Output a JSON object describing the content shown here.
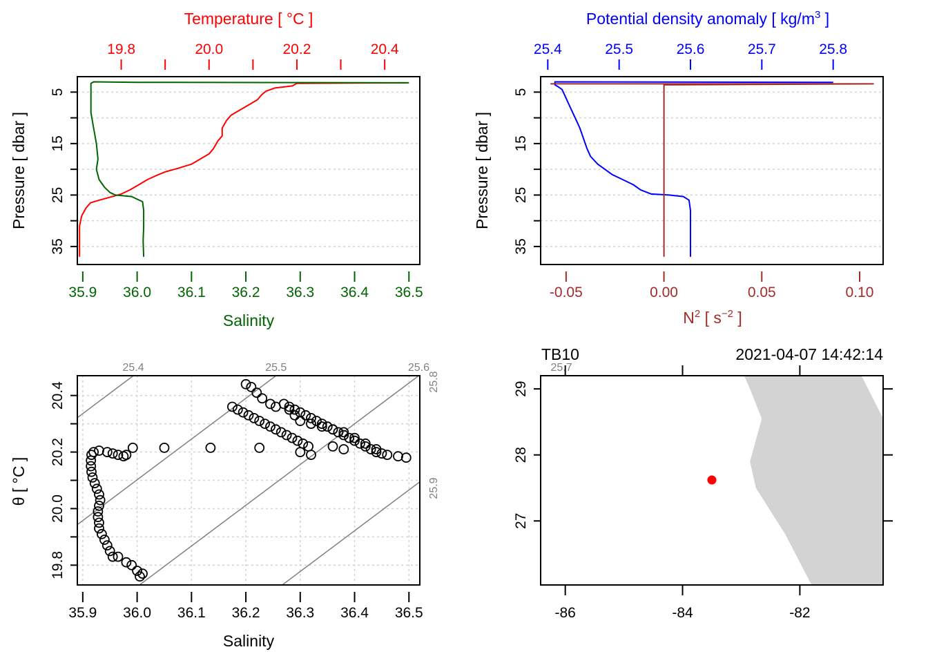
{
  "colors": {
    "temperature": "#ff0000",
    "salinity": "#006400",
    "density": "#0000ff",
    "n2": "#a52a2a",
    "isopycnal": "#808080",
    "grid": "#d3d3d3",
    "land": "#d3d3d3",
    "station": "#ff0000",
    "frame": "#000000"
  },
  "chart_data": [
    {
      "id": "ts-profile",
      "type": "line",
      "title": "",
      "ylabel": "Pressure [ dbar ]",
      "ylim": [
        38.5,
        2
      ],
      "yticks": [
        5,
        10,
        15,
        20,
        25,
        30,
        35
      ],
      "yticklabels": [
        "5",
        "",
        "15",
        "",
        "25",
        "",
        "35"
      ],
      "grid": "horizontal-dotted",
      "top_axis": {
        "label": "Temperature [ °C ]",
        "range": [
          19.7,
          20.48
        ],
        "ticks": [
          19.8,
          19.9,
          20.0,
          20.1,
          20.2,
          20.3,
          20.4
        ],
        "ticklabels": [
          "19.8",
          "",
          "20.0",
          "",
          "20.2",
          "",
          "20.4"
        ]
      },
      "bottom_axis": {
        "label": "Salinity",
        "range": [
          35.89,
          36.52
        ],
        "ticks": [
          35.9,
          36.0,
          36.1,
          36.2,
          36.3,
          36.4,
          36.5
        ],
        "ticklabels": [
          "35.9",
          "36.0",
          "36.1",
          "36.2",
          "36.3",
          "36.4",
          "36.5"
        ]
      },
      "series": [
        {
          "name": "Temperature",
          "axis": "top",
          "points": [
            [
              20.45,
              3.2
            ],
            [
              20.2,
              3.3
            ],
            [
              20.19,
              3.8
            ],
            [
              20.15,
              4.2
            ],
            [
              20.13,
              4.8
            ],
            [
              20.12,
              5.5
            ],
            [
              20.11,
              6.5
            ],
            [
              20.09,
              7.5
            ],
            [
              20.07,
              8.5
            ],
            [
              20.05,
              9.5
            ],
            [
              20.04,
              10.5
            ],
            [
              20.03,
              12
            ],
            [
              20.03,
              13.5
            ],
            [
              20.02,
              14.5
            ],
            [
              20.01,
              16
            ],
            [
              20.0,
              17
            ],
            [
              19.98,
              18
            ],
            [
              19.96,
              19
            ],
            [
              19.93,
              19.8
            ],
            [
              19.9,
              20.5
            ],
            [
              19.88,
              21.2
            ],
            [
              19.86,
              22
            ],
            [
              19.84,
              23
            ],
            [
              19.82,
              24
            ],
            [
              19.8,
              24.8
            ],
            [
              19.78,
              25.3
            ],
            [
              19.75,
              26.0
            ],
            [
              19.73,
              26.5
            ],
            [
              19.72,
              27.5
            ],
            [
              19.71,
              29
            ],
            [
              19.705,
              31
            ],
            [
              19.705,
              33
            ],
            [
              19.705,
              35
            ],
            [
              19.705,
              37
            ]
          ]
        },
        {
          "name": "Salinity",
          "axis": "bottom",
          "points": [
            [
              36.5,
              3.2
            ],
            [
              36.0,
              3.1
            ],
            [
              35.92,
              3.0
            ],
            [
              35.915,
              3.3
            ],
            [
              35.915,
              4
            ],
            [
              35.915,
              6
            ],
            [
              35.915,
              9
            ],
            [
              35.92,
              12
            ],
            [
              35.925,
              15
            ],
            [
              35.928,
              18
            ],
            [
              35.925,
              20
            ],
            [
              35.93,
              22
            ],
            [
              35.94,
              23.5
            ],
            [
              35.95,
              24.5
            ],
            [
              35.96,
              25
            ],
            [
              35.99,
              25.3
            ],
            [
              36.0,
              25.8
            ],
            [
              36.01,
              26.3
            ],
            [
              36.012,
              28
            ],
            [
              36.012,
              31
            ],
            [
              36.011,
              34
            ],
            [
              36.012,
              37
            ]
          ]
        }
      ]
    },
    {
      "id": "density-n2-profile",
      "type": "line",
      "title": "",
      "ylabel": "Pressure [ dbar ]",
      "ylim": [
        38.5,
        2
      ],
      "yticks": [
        5,
        10,
        15,
        20,
        25,
        30,
        35
      ],
      "yticklabels": [
        "5",
        "",
        "15",
        "",
        "25",
        "",
        "35"
      ],
      "grid": "horizontal-dotted",
      "top_axis": {
        "label": "Potential density anomaly [ kg/m³ ]",
        "range": [
          25.39,
          25.87
        ],
        "ticks": [
          25.4,
          25.5,
          25.6,
          25.7,
          25.8
        ],
        "ticklabels": [
          "25.4",
          "25.5",
          "25.6",
          "25.7",
          "25.8"
        ]
      },
      "bottom_axis": {
        "label": "N² [ s⁻² ]",
        "range": [
          -0.063,
          0.112
        ],
        "ticks": [
          -0.05,
          0.0,
          0.05,
          0.1
        ],
        "ticklabels": [
          "-0.05",
          "0.00",
          "0.05",
          "0.10"
        ]
      },
      "series": [
        {
          "name": "Potential density anomaly",
          "axis": "top",
          "points": [
            [
              25.8,
              3.1
            ],
            [
              25.41,
              3.0
            ],
            [
              25.41,
              3.6
            ],
            [
              25.415,
              4.0
            ],
            [
              25.42,
              4.5
            ],
            [
              25.425,
              6
            ],
            [
              25.43,
              7.5
            ],
            [
              25.435,
              9
            ],
            [
              25.44,
              10.5
            ],
            [
              25.445,
              12
            ],
            [
              25.45,
              14
            ],
            [
              25.455,
              16
            ],
            [
              25.46,
              17.5
            ],
            [
              25.47,
              19
            ],
            [
              25.48,
              20
            ],
            [
              25.49,
              21
            ],
            [
              25.505,
              22
            ],
            [
              25.52,
              23
            ],
            [
              25.53,
              24
            ],
            [
              25.545,
              24.8
            ],
            [
              25.57,
              25.0
            ],
            [
              25.59,
              25.3
            ],
            [
              25.598,
              26.0
            ],
            [
              25.6,
              28
            ],
            [
              25.6,
              31
            ],
            [
              25.6,
              34
            ],
            [
              25.6,
              37
            ]
          ]
        },
        {
          "name": "N2",
          "axis": "bottom",
          "points": [
            [
              -0.058,
              3.4
            ],
            [
              0.107,
              3.4
            ],
            [
              0.0,
              3.6
            ],
            [
              0.0,
              4.5
            ],
            [
              0.0,
              10
            ],
            [
              0.0,
              20
            ],
            [
              0.0,
              30
            ],
            [
              0.0,
              37
            ]
          ]
        }
      ]
    },
    {
      "id": "ts-diagram",
      "type": "scatter",
      "title": "",
      "xlabel": "Salinity",
      "ylabel": "θ [ °C ]",
      "xlim": [
        35.89,
        36.52
      ],
      "ylim": [
        19.73,
        20.47
      ],
      "xticks": [
        35.9,
        36.0,
        36.1,
        36.2,
        36.3,
        36.4,
        36.5
      ],
      "xticklabels": [
        "35.9",
        "36.0",
        "36.1",
        "36.2",
        "36.3",
        "36.4",
        "36.5"
      ],
      "yticks": [
        19.8,
        19.9,
        20.0,
        20.1,
        20.2,
        20.3,
        20.4
      ],
      "yticklabels": [
        "19.8",
        "",
        "20.0",
        "",
        "20.2",
        "",
        "20.4"
      ],
      "grid": "dotted",
      "isopycnals": [
        {
          "label": "25.4",
          "value": 25.4,
          "label_pos": "top"
        },
        {
          "label": "25.5",
          "value": 25.5,
          "label_pos": "top"
        },
        {
          "label": "25.6",
          "value": 25.6,
          "label_pos": "top"
        },
        {
          "label": "25.7",
          "value": 25.7,
          "label_pos": "top"
        },
        {
          "label": "25.8",
          "value": 25.8,
          "label_pos": "right"
        },
        {
          "label": "25.9",
          "value": 25.9,
          "label_pos": "right"
        }
      ],
      "points": [
        [
          36.01,
          19.77
        ],
        [
          36.005,
          19.76
        ],
        [
          36.0,
          19.78
        ],
        [
          35.99,
          19.8
        ],
        [
          35.98,
          19.81
        ],
        [
          35.965,
          19.83
        ],
        [
          35.955,
          19.83
        ],
        [
          35.95,
          19.85
        ],
        [
          35.945,
          19.87
        ],
        [
          35.94,
          19.89
        ],
        [
          35.935,
          19.91
        ],
        [
          35.93,
          19.93
        ],
        [
          35.93,
          19.95
        ],
        [
          35.928,
          19.97
        ],
        [
          35.928,
          19.99
        ],
        [
          35.93,
          20.01
        ],
        [
          35.932,
          20.03
        ],
        [
          35.93,
          20.05
        ],
        [
          35.926,
          20.07
        ],
        [
          35.922,
          20.09
        ],
        [
          35.918,
          20.11
        ],
        [
          35.916,
          20.13
        ],
        [
          35.915,
          20.15
        ],
        [
          35.915,
          20.17
        ],
        [
          35.916,
          20.19
        ],
        [
          35.92,
          20.2
        ],
        [
          35.93,
          20.205
        ],
        [
          35.945,
          20.2
        ],
        [
          35.955,
          20.195
        ],
        [
          35.965,
          20.19
        ],
        [
          35.975,
          20.185
        ],
        [
          35.98,
          20.19
        ],
        [
          35.992,
          20.215
        ],
        [
          36.05,
          20.215
        ],
        [
          36.135,
          20.215
        ],
        [
          36.225,
          20.215
        ],
        [
          36.2,
          20.44
        ],
        [
          36.21,
          20.43
        ],
        [
          36.22,
          20.41
        ],
        [
          36.23,
          20.39
        ],
        [
          36.245,
          20.37
        ],
        [
          36.255,
          20.36
        ],
        [
          36.27,
          20.37
        ],
        [
          36.28,
          20.35
        ],
        [
          36.29,
          20.33
        ],
        [
          36.3,
          20.31
        ],
        [
          36.32,
          20.3
        ],
        [
          36.34,
          20.29
        ],
        [
          36.36,
          20.28
        ],
        [
          36.38,
          20.27
        ],
        [
          36.4,
          20.25
        ],
        [
          36.42,
          20.23
        ],
        [
          36.44,
          20.21
        ],
        [
          36.46,
          20.19
        ],
        [
          36.48,
          20.185
        ],
        [
          36.495,
          20.18
        ],
        [
          36.175,
          20.36
        ],
        [
          36.185,
          20.35
        ],
        [
          36.195,
          20.34
        ],
        [
          36.205,
          20.33
        ],
        [
          36.215,
          20.32
        ],
        [
          36.225,
          20.31
        ],
        [
          36.235,
          20.3
        ],
        [
          36.245,
          20.29
        ],
        [
          36.255,
          20.28
        ],
        [
          36.265,
          20.27
        ],
        [
          36.275,
          20.26
        ],
        [
          36.285,
          20.25
        ],
        [
          36.295,
          20.24
        ],
        [
          36.305,
          20.23
        ],
        [
          36.315,
          20.22
        ],
        [
          36.3,
          20.2
        ],
        [
          36.32,
          20.19
        ],
        [
          36.28,
          20.36
        ],
        [
          36.29,
          20.35
        ],
        [
          36.3,
          20.34
        ],
        [
          36.31,
          20.33
        ],
        [
          36.32,
          20.32
        ],
        [
          36.33,
          20.31
        ],
        [
          36.34,
          20.3
        ],
        [
          36.35,
          20.29
        ],
        [
          36.36,
          20.28
        ],
        [
          36.37,
          20.27
        ],
        [
          36.38,
          20.26
        ],
        [
          36.39,
          20.25
        ],
        [
          36.4,
          20.24
        ],
        [
          36.41,
          20.23
        ],
        [
          36.42,
          20.22
        ],
        [
          36.43,
          20.21
        ],
        [
          36.44,
          20.2
        ],
        [
          36.45,
          20.195
        ],
        [
          36.38,
          20.21
        ],
        [
          36.36,
          20.22
        ]
      ]
    },
    {
      "id": "station-map",
      "type": "map",
      "title_left": "TB10",
      "title_right": "2021-04-07 14:42:14",
      "xlim": [
        -86.42,
        -80.58
      ],
      "ylim": [
        26.03,
        29.2
      ],
      "xticks": [
        -86,
        -84,
        -82
      ],
      "xticklabels": [
        "-86",
        "-84",
        "-82"
      ],
      "yticks": [
        27,
        28,
        29
      ],
      "yticklabels": [
        "27",
        "28",
        "29"
      ],
      "station": {
        "name": "TB10",
        "lon": -83.5,
        "lat": 27.62
      },
      "land_polygon": [
        [
          -82.95,
          29.2
        ],
        [
          -82.85,
          29.0
        ],
        [
          -82.65,
          28.55
        ],
        [
          -82.85,
          27.9
        ],
        [
          -82.75,
          27.5
        ],
        [
          -82.25,
          26.8
        ],
        [
          -81.8,
          26.03
        ],
        [
          -80.58,
          26.03
        ],
        [
          -80.58,
          28.55
        ],
        [
          -80.95,
          29.2
        ]
      ]
    }
  ]
}
